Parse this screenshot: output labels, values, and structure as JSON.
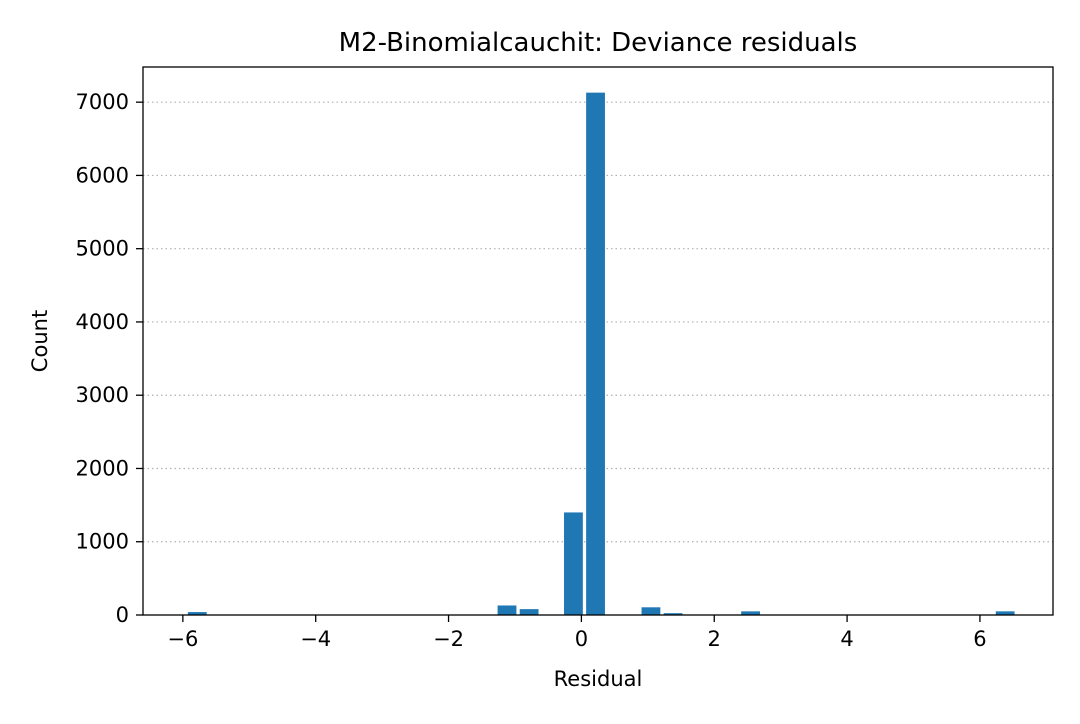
{
  "chart_data": {
    "type": "bar",
    "title": "M2-Binomialcauchit: Deviance residuals",
    "xlabel": "Residual",
    "ylabel": "Count",
    "xlim": [
      -6.6,
      7.1
    ],
    "ylim": [
      0,
      7480
    ],
    "xticks": [
      -6,
      -4,
      -2,
      0,
      2,
      4,
      6
    ],
    "xtick_labels": [
      "−6",
      "−4",
      "−2",
      "0",
      "2",
      "4",
      "6"
    ],
    "yticks": [
      0,
      1000,
      2000,
      3000,
      4000,
      5000,
      6000,
      7000
    ],
    "ytick_labels": [
      "0",
      "1000",
      "2000",
      "3000",
      "4000",
      "5000",
      "6000",
      "7000"
    ],
    "grid": "y-dotted",
    "bar_color": "#1f77b4",
    "bin_width": 0.333,
    "bars": [
      {
        "x": -5.783,
        "value": 40
      },
      {
        "x": -1.12,
        "value": 130
      },
      {
        "x": -0.787,
        "value": 80
      },
      {
        "x": -0.12,
        "value": 1400
      },
      {
        "x": 0.213,
        "value": 7130
      },
      {
        "x": 1.047,
        "value": 105
      },
      {
        "x": 1.38,
        "value": 25
      },
      {
        "x": 2.547,
        "value": 50
      },
      {
        "x": 6.38,
        "value": 50
      }
    ]
  }
}
